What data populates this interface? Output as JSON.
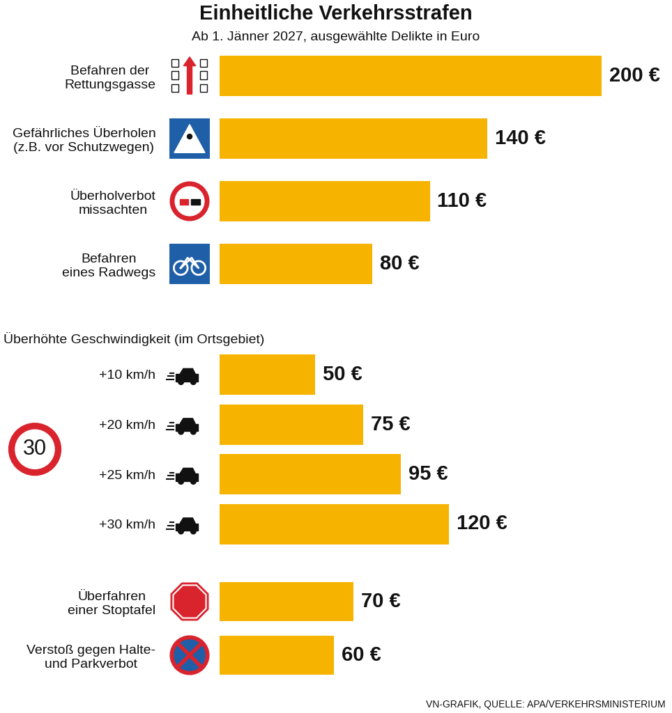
{
  "chart_data": {
    "type": "bar",
    "orientation": "horizontal",
    "title": "Einheitliche Verkehrsstrafen",
    "subtitle": "Ab 1. Jänner 2027, ausgewählte Delikte in Euro",
    "source": "VN-GRAFIK, QUELLE: APA/VERKEHRSMINISTERIUM",
    "color": "#f6b300",
    "data_labels": true,
    "tick_labels": "y",
    "xlim": [
      0,
      235
    ],
    "groups": [
      {
        "categories": [
          "Befahren der\nRettungsgasse",
          "Gefährliches Überholen\n(z.B. vor Schutzwegen)",
          "Überholverbot\nmissachten",
          "Befahren\neines Radwegs"
        ],
        "values": [
          200,
          140,
          110,
          80
        ],
        "value_labels": [
          "200 €",
          "140 €",
          "110 €",
          "80 €"
        ]
      },
      {
        "title": "Überhöhte Geschwindigkeit (im Ortsgebiet)",
        "sign": "30",
        "categories": [
          "+10 km/h",
          "+20 km/h",
          "+25 km/h",
          "+30 km/h"
        ],
        "values": [
          50,
          75,
          95,
          120
        ],
        "value_labels": [
          "50 €",
          "75 €",
          "95 €",
          "120 €"
        ]
      },
      {
        "categories": [
          "Überfahren\neiner Stoptafel",
          "Verstoß gegen Halte-\nund Parkverbot"
        ],
        "values": [
          70,
          60
        ],
        "value_labels": [
          "70 €",
          "60 €"
        ]
      }
    ]
  }
}
